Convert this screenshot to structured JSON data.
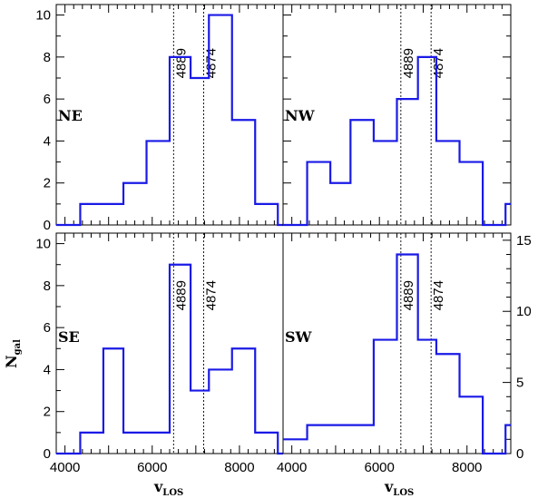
{
  "chart_data": {
    "type": "histogram-grid",
    "xlabel": "v",
    "xlabel_sub": "LOS",
    "ylabel": "N",
    "ylabel_sub": "gal",
    "xlim": [
      3800,
      9000
    ],
    "x_ticks": [
      4000,
      6000,
      8000
    ],
    "bin_edges": [
      3800,
      4350,
      4880,
      5340,
      5870,
      6400,
      6880,
      7300,
      7830,
      8360,
      8880,
      9000
    ],
    "reference_lines": [
      {
        "label": "4889",
        "x": 6490
      },
      {
        "label": "4874",
        "x": 7180
      }
    ],
    "panels": [
      {
        "label": "NE",
        "ylim": [
          0,
          10.5
        ],
        "y_ticks": [
          0,
          2,
          4,
          6,
          8,
          10
        ],
        "tick_side": "left",
        "counts": [
          0,
          1,
          1,
          2,
          4,
          8,
          7,
          10,
          5,
          1,
          0
        ]
      },
      {
        "label": "NW",
        "ylim": [
          0,
          10.5
        ],
        "y_ticks": [
          0,
          2,
          4,
          6,
          8,
          10
        ],
        "tick_side": "none",
        "counts": [
          0,
          3,
          2,
          5,
          4,
          6,
          8,
          4,
          3,
          0,
          1
        ]
      },
      {
        "label": "SE",
        "ylim": [
          0,
          10.5
        ],
        "y_ticks": [
          0,
          2,
          4,
          6,
          8,
          10
        ],
        "tick_side": "left",
        "counts": [
          0,
          1,
          5,
          1,
          1,
          9,
          3,
          4,
          5,
          1,
          0
        ]
      },
      {
        "label": "SW",
        "ylim": [
          0,
          15.5
        ],
        "y_ticks": [
          0,
          5,
          10,
          15
        ],
        "tick_side": "right",
        "counts": [
          1,
          2,
          2,
          2,
          8,
          14,
          8,
          7,
          4,
          0,
          2
        ]
      }
    ]
  }
}
